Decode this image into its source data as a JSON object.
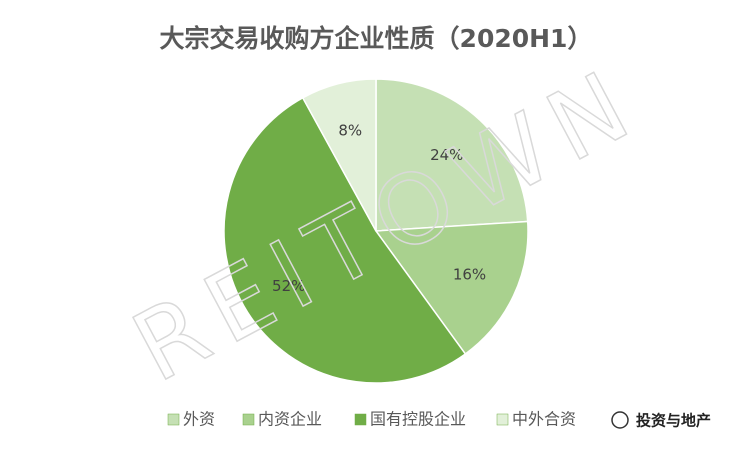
{
  "chart_data": {
    "type": "pie",
    "title": "大宗交易收购方企业性质（2020H1）",
    "categories": [
      "外资",
      "内资企业",
      "国有控股企业",
      "中外合资"
    ],
    "values": [
      24,
      16,
      52,
      8
    ],
    "value_labels": [
      "24%",
      "16%",
      "52%",
      "8%"
    ],
    "colors": [
      "#c5e0b4",
      "#a9d18e",
      "#70ad47",
      "#e2f0d9"
    ],
    "legend": "bottom"
  },
  "watermark": "REITOWN",
  "badge": "投资与地产"
}
